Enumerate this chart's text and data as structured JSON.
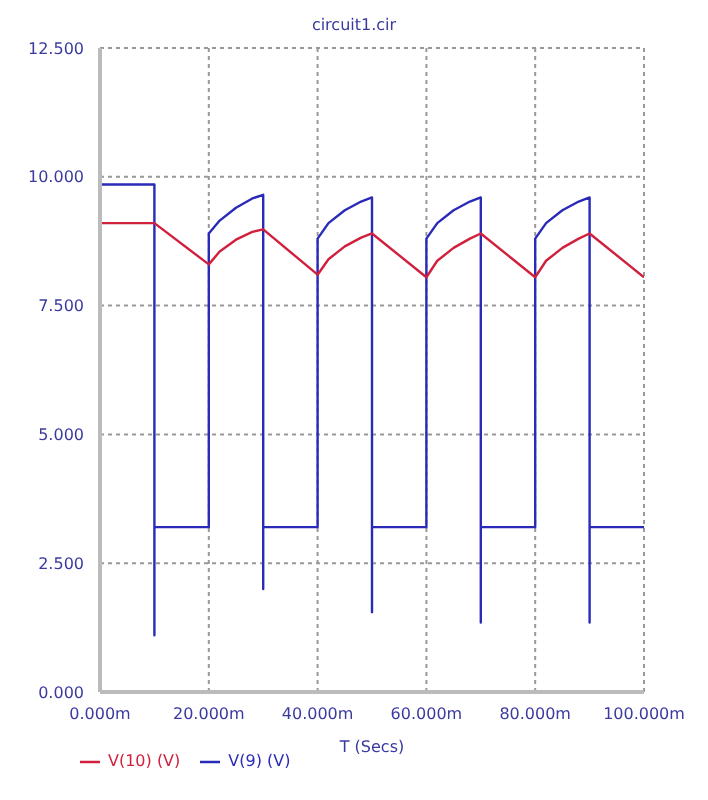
{
  "chart_data": {
    "type": "line",
    "title": "circuit1.cir",
    "xlabel": "T (Secs)",
    "xlim": [
      0,
      100
    ],
    "xticks": [
      {
        "value": 0,
        "label": "0.000m"
      },
      {
        "value": 20,
        "label": "20.000m"
      },
      {
        "value": 40,
        "label": "40.000m"
      },
      {
        "value": 60,
        "label": "60.000m"
      },
      {
        "value": 80,
        "label": "80.000m"
      },
      {
        "value": 100,
        "label": "100.000m"
      }
    ],
    "ylim": [
      0,
      12.5
    ],
    "yticks": [
      {
        "value": 0,
        "label": "0.000"
      },
      {
        "value": 2.5,
        "label": "2.500"
      },
      {
        "value": 5,
        "label": "5.000"
      },
      {
        "value": 7.5,
        "label": "7.500"
      },
      {
        "value": 10,
        "label": "10.000"
      },
      {
        "value": 12.5,
        "label": "12.500"
      }
    ],
    "grid": true,
    "legend": "bottom left",
    "marker": "none",
    "line_style": "solid",
    "series": [
      {
        "name": "V(9) (V)",
        "color": "#2a2ab8",
        "x": [
          0,
          10,
          10,
          10,
          20,
          20,
          22,
          25,
          28,
          30,
          30,
          30,
          40,
          40,
          42,
          45,
          48,
          50,
          50,
          50,
          60,
          60,
          62,
          65,
          68,
          70,
          70,
          70,
          80,
          80,
          82,
          85,
          88,
          90,
          90,
          90,
          100
        ],
        "values": [
          9.85,
          9.85,
          1.1,
          3.2,
          3.2,
          8.9,
          9.15,
          9.4,
          9.58,
          9.65,
          2.0,
          3.2,
          3.2,
          8.8,
          9.1,
          9.35,
          9.52,
          9.6,
          1.55,
          3.2,
          3.2,
          8.8,
          9.1,
          9.35,
          9.52,
          9.6,
          1.35,
          3.2,
          3.2,
          8.8,
          9.1,
          9.35,
          9.52,
          9.6,
          1.35,
          3.2,
          3.2
        ]
      },
      {
        "name": "V(10) (V)",
        "color": "#d0203c",
        "x": [
          0,
          10,
          20,
          22,
          25,
          28,
          30,
          40,
          42,
          45,
          48,
          50,
          60,
          62,
          65,
          68,
          70,
          80,
          82,
          85,
          88,
          90,
          100
        ],
        "values": [
          9.1,
          9.1,
          8.3,
          8.55,
          8.78,
          8.93,
          8.98,
          8.1,
          8.4,
          8.65,
          8.82,
          8.9,
          8.05,
          8.37,
          8.62,
          8.8,
          8.9,
          8.05,
          8.37,
          8.62,
          8.8,
          8.9,
          8.05
        ]
      }
    ]
  }
}
